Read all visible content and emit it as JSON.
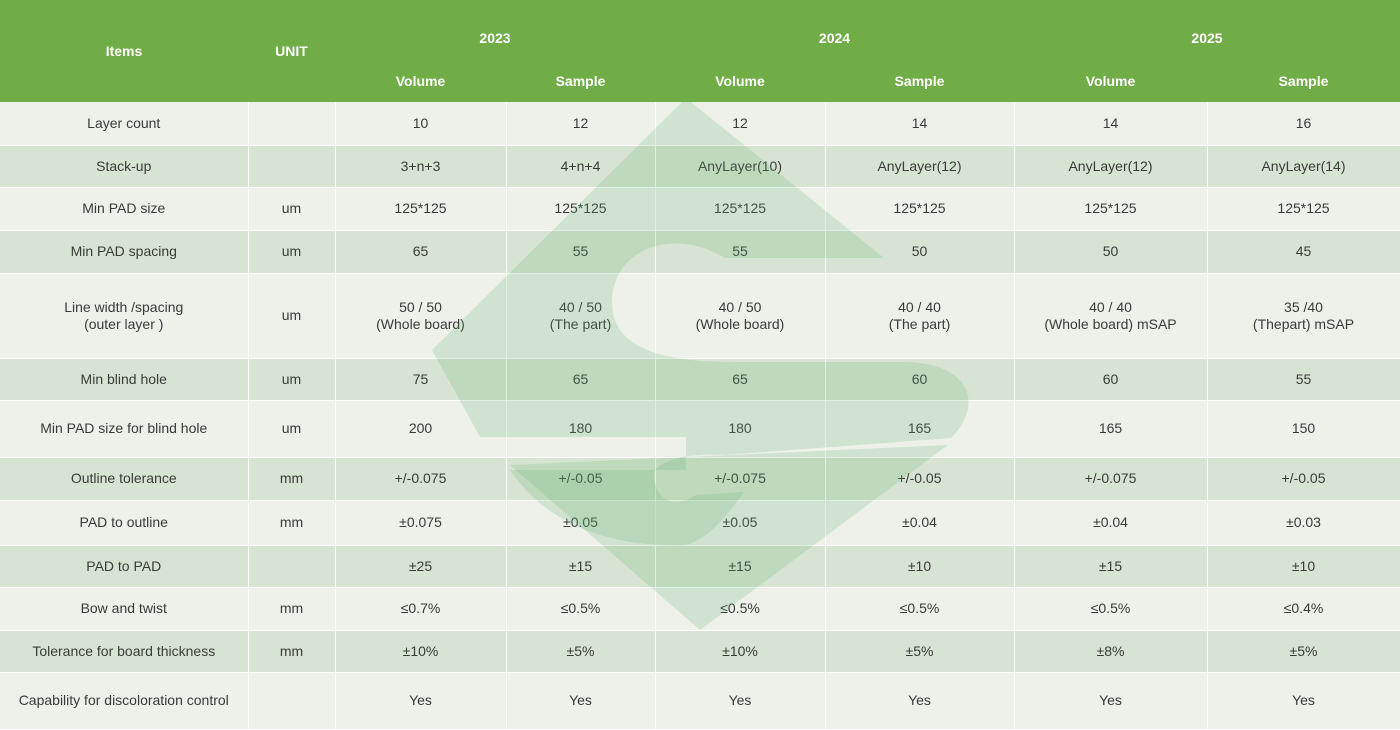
{
  "header": {
    "items": "Items",
    "unit": "UNIT",
    "years": [
      "2023",
      "2024",
      "2025"
    ],
    "sub": [
      "Volume",
      "Sample",
      "Volume",
      "Sample",
      "Volume",
      "Sample"
    ]
  },
  "rows": [
    {
      "item": "Layer count",
      "unit": "",
      "v": [
        "10",
        "12",
        "12",
        "14",
        "14",
        "16"
      ]
    },
    {
      "item": "Stack-up",
      "unit": "",
      "v": [
        "3+n+3",
        "4+n+4",
        "AnyLayer(10)",
        "AnyLayer(12)",
        "AnyLayer(12)",
        "AnyLayer(14)"
      ]
    },
    {
      "item": "Min PAD size",
      "unit": "um",
      "v": [
        "125*125",
        "125*125",
        "125*125",
        "125*125",
        "125*125",
        "125*125"
      ]
    },
    {
      "item": "Min PAD spacing",
      "unit": "um",
      "v": [
        "65",
        "55",
        "55",
        "50",
        "50",
        "45"
      ]
    },
    {
      "item": "Line width /spacing",
      "item2": "(outer layer )",
      "unit": "um",
      "v": [
        "50 / 50",
        "40 / 50",
        "40 / 50",
        "40 / 40",
        "40 / 40",
        "35 /40"
      ],
      "v2": [
        "(Whole board)",
        "(The part)",
        "(Whole board)",
        "(The part)",
        "(Whole board)   mSAP",
        "(Thepart)   mSAP"
      ]
    },
    {
      "item": "Min blind hole",
      "unit": "um",
      "v": [
        "75",
        "65",
        "65",
        "60",
        "60",
        "55"
      ]
    },
    {
      "item": "Min PAD size for blind hole",
      "unit": "um",
      "v": [
        "200",
        "180",
        "180",
        "165",
        "165",
        "150"
      ]
    },
    {
      "item": "Outline tolerance",
      "unit": "mm",
      "v": [
        "+/-0.075",
        "+/-0.05",
        "+/-0.075",
        "+/-0.05",
        "+/-0.075",
        "+/-0.05"
      ]
    },
    {
      "item": "PAD to  outline",
      "unit": "mm",
      "v": [
        "±0.075",
        "±0.05",
        "±0.05",
        "±0.04",
        "±0.04",
        "±0.03"
      ]
    },
    {
      "item": "PAD to  PAD",
      "unit": "",
      "v": [
        "±25",
        "±15",
        "±15",
        "±10",
        "±15",
        "±10"
      ]
    },
    {
      "item": "Bow and twist",
      "unit": "mm",
      "v": [
        "≤0.7%",
        "≤0.5%",
        "≤0.5%",
        "≤0.5%",
        "≤0.5%",
        "≤0.4%"
      ]
    },
    {
      "item": "Tolerance for board thickness",
      "unit": "mm",
      "v": [
        "±10%",
        "±5%",
        "±10%",
        "±5%",
        "±8%",
        "±5%"
      ]
    },
    {
      "item": "Capability for discoloration  control",
      "unit": "",
      "v": [
        "Yes",
        "Yes",
        "Yes",
        "Yes",
        "Yes",
        "Yes"
      ]
    }
  ]
}
